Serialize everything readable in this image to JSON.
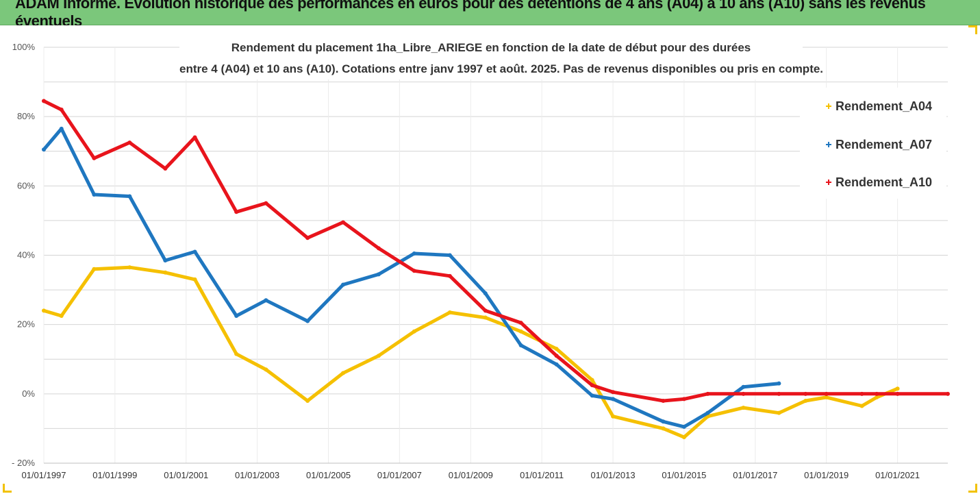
{
  "header": {
    "title": "ADAM Informe. Evolution historique des performances en euros pour des détentions de 4 ans (A04) à 10 ans (A10) sans les revenus éventuels"
  },
  "colors": {
    "header_bg": "#7bc77b",
    "A04": "#f5c000",
    "A07": "#1f77c0",
    "A10": "#e8141c"
  },
  "chart_data": {
    "type": "line",
    "title_lines": [
      "Rendement du placement 1ha_Libre_ARIEGE en fonction de la date de début pour des durées",
      "entre 4 (A04) et 10 ans (A10). Cotations entre janv 1997 et août. 2025. Pas de revenus disponibles ou pris en compte."
    ],
    "x_axis": {
      "type": "date",
      "range": [
        "1997-01-01",
        "2022-06-01"
      ],
      "tick_labels": [
        "01/01/1997",
        "01/01/1999",
        "01/01/2001",
        "01/01/2003",
        "01/01/2005",
        "01/01/2007",
        "01/01/2009",
        "01/01/2011",
        "01/01/2013",
        "01/01/2015",
        "01/01/2017",
        "01/01/2019",
        "01/01/2021"
      ],
      "tick_values": [
        "1997-01-01",
        "1999-01-01",
        "2001-01-01",
        "2003-01-01",
        "2005-01-01",
        "2007-01-01",
        "2009-01-01",
        "2011-01-01",
        "2013-01-01",
        "2015-01-01",
        "2017-01-01",
        "2019-01-01",
        "2021-01-01"
      ]
    },
    "y_axis": {
      "range": [
        -20,
        100
      ],
      "unit": "%",
      "tick_labels": [
        "- 20%",
        "0%",
        "20%",
        "40%",
        "60%",
        "80%",
        "100%"
      ],
      "tick_values": [
        -20,
        0,
        20,
        40,
        60,
        80,
        100
      ]
    },
    "grid": "horizontal",
    "legend_position": "right",
    "series": [
      {
        "name": "Rendement_A04",
        "points": [
          [
            "1997-01-01",
            24
          ],
          [
            "1997-07-01",
            22.5
          ],
          [
            "1998-06-01",
            36
          ],
          [
            "1999-06-01",
            36.5
          ],
          [
            "2000-06-01",
            35
          ],
          [
            "2001-04-01",
            33
          ],
          [
            "2002-06-01",
            11.5
          ],
          [
            "2003-04-01",
            7
          ],
          [
            "2004-06-01",
            -2
          ],
          [
            "2005-06-01",
            6
          ],
          [
            "2006-06-01",
            11
          ],
          [
            "2007-06-01",
            18
          ],
          [
            "2008-06-01",
            23.5
          ],
          [
            "2009-06-01",
            22
          ],
          [
            "2010-06-01",
            18
          ],
          [
            "2011-06-01",
            13
          ],
          [
            "2012-06-01",
            4
          ],
          [
            "2013-01-01",
            -6.5
          ],
          [
            "2014-06-01",
            -10
          ],
          [
            "2015-01-01",
            -12.5
          ],
          [
            "2015-09-01",
            -6.5
          ],
          [
            "2016-09-01",
            -4
          ],
          [
            "2017-09-01",
            -5.5
          ],
          [
            "2018-06-01",
            -2
          ],
          [
            "2019-01-01",
            -1
          ],
          [
            "2020-01-01",
            -3.5
          ],
          [
            "2020-06-01",
            -1
          ],
          [
            "2021-01-01",
            1.5
          ]
        ]
      },
      {
        "name": "Rendement_A07",
        "points": [
          [
            "1997-01-01",
            70.5
          ],
          [
            "1997-07-01",
            76.5
          ],
          [
            "1998-06-01",
            57.5
          ],
          [
            "1999-06-01",
            57
          ],
          [
            "2000-06-01",
            38.5
          ],
          [
            "2001-04-01",
            41
          ],
          [
            "2002-06-01",
            22.5
          ],
          [
            "2003-04-01",
            27
          ],
          [
            "2004-06-01",
            21
          ],
          [
            "2005-06-01",
            31.5
          ],
          [
            "2006-06-01",
            34.5
          ],
          [
            "2007-06-01",
            40.5
          ],
          [
            "2008-06-01",
            40
          ],
          [
            "2009-06-01",
            29
          ],
          [
            "2010-06-01",
            14
          ],
          [
            "2011-06-01",
            8.5
          ],
          [
            "2012-06-01",
            -0.5
          ],
          [
            "2013-01-01",
            -1.5
          ],
          [
            "2014-06-01",
            -8
          ],
          [
            "2015-01-01",
            -9.5
          ],
          [
            "2015-09-01",
            -5.5
          ],
          [
            "2016-09-01",
            2
          ],
          [
            "2017-09-01",
            3
          ]
        ]
      },
      {
        "name": "Rendement_A10",
        "points": [
          [
            "1997-01-01",
            84.5
          ],
          [
            "1997-07-01",
            82
          ],
          [
            "1998-06-01",
            68
          ],
          [
            "1999-06-01",
            72.5
          ],
          [
            "2000-06-01",
            65
          ],
          [
            "2001-04-01",
            74
          ],
          [
            "2002-06-01",
            52.5
          ],
          [
            "2003-04-01",
            55
          ],
          [
            "2004-06-01",
            45
          ],
          [
            "2005-06-01",
            49.5
          ],
          [
            "2006-06-01",
            42
          ],
          [
            "2007-06-01",
            35.5
          ],
          [
            "2008-06-01",
            34
          ],
          [
            "2009-06-01",
            24
          ],
          [
            "2010-06-01",
            20.5
          ],
          [
            "2011-06-01",
            11
          ],
          [
            "2012-06-01",
            2.5
          ],
          [
            "2013-01-01",
            0.5
          ],
          [
            "2014-06-01",
            -2
          ],
          [
            "2015-01-01",
            -1.5
          ],
          [
            "2015-09-01",
            0
          ],
          [
            "2016-09-01",
            0
          ],
          [
            "2017-09-01",
            0
          ],
          [
            "2018-06-01",
            0
          ],
          [
            "2019-01-01",
            0
          ],
          [
            "2020-01-01",
            0
          ],
          [
            "2020-06-01",
            0
          ],
          [
            "2021-01-01",
            0
          ],
          [
            "2022-06-01",
            0
          ]
        ]
      }
    ]
  }
}
